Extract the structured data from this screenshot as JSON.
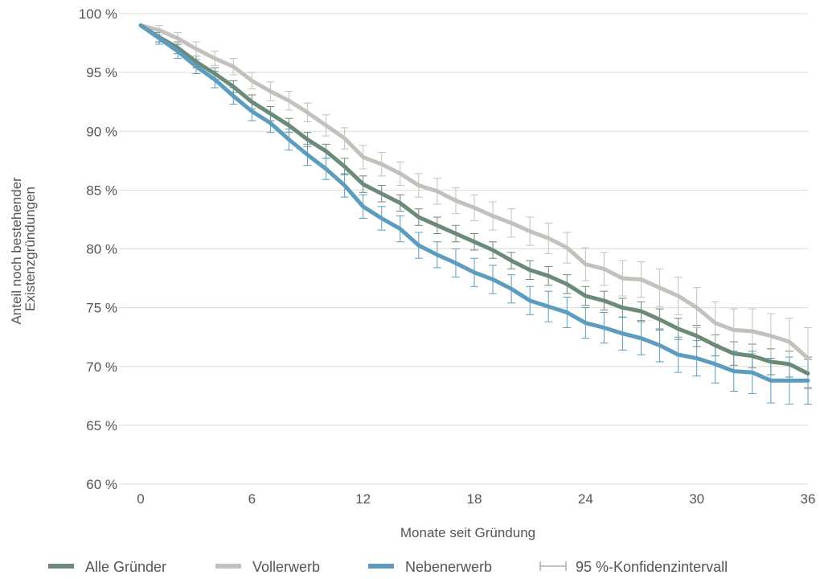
{
  "chart_data": {
    "type": "line",
    "title": "",
    "xlabel": "Monate seit Gründung",
    "ylabel_lines": [
      "Anteil noch bestehender",
      "Existenzgründungen"
    ],
    "xlim": [
      0,
      36
    ],
    "ylim": [
      60,
      100
    ],
    "x_ticks": [
      0,
      6,
      12,
      18,
      24,
      30,
      36
    ],
    "y_ticks": [
      60,
      65,
      70,
      75,
      80,
      85,
      90,
      95,
      100
    ],
    "y_tick_labels": [
      "60 %",
      "65 %",
      "70 %",
      "75 %",
      "80 %",
      "85 %",
      "90 %",
      "95 %",
      "100 %"
    ],
    "grid": "horizontal",
    "legend_position": "bottom",
    "x": [
      0,
      1,
      2,
      3,
      4,
      5,
      6,
      7,
      8,
      9,
      10,
      11,
      12,
      13,
      14,
      15,
      16,
      17,
      18,
      19,
      20,
      21,
      22,
      23,
      24,
      25,
      26,
      27,
      28,
      29,
      30,
      31,
      32,
      33,
      34,
      35,
      36
    ],
    "series": [
      {
        "name": "Alle Gründer",
        "color": "#6b8a78",
        "values": [
          99.0,
          98.0,
          97.1,
          95.9,
          94.9,
          93.8,
          92.5,
          91.5,
          90.5,
          89.3,
          88.3,
          87.0,
          85.5,
          84.7,
          83.9,
          82.7,
          82.0,
          81.3,
          80.6,
          79.9,
          79.0,
          78.2,
          77.7,
          77.0,
          76.0,
          75.6,
          75.0,
          74.7,
          74.0,
          73.2,
          72.6,
          71.8,
          71.1,
          70.9,
          70.4,
          70.2,
          69.4
        ],
        "ci_half": [
          0.4,
          0.4,
          0.5,
          0.5,
          0.5,
          0.5,
          0.6,
          0.6,
          0.6,
          0.6,
          0.6,
          0.7,
          0.7,
          0.7,
          0.7,
          0.7,
          0.7,
          0.7,
          0.7,
          0.7,
          0.7,
          0.8,
          0.8,
          0.8,
          0.8,
          0.8,
          0.8,
          0.8,
          0.9,
          0.9,
          0.9,
          0.9,
          1.0,
          1.0,
          1.1,
          1.1,
          1.2
        ]
      },
      {
        "name": "Vollerwerb",
        "color": "#c4c0bc",
        "values": [
          99.0,
          98.6,
          97.9,
          97.0,
          96.2,
          95.5,
          94.3,
          93.4,
          92.6,
          91.6,
          90.5,
          89.4,
          87.8,
          87.2,
          86.4,
          85.4,
          84.9,
          84.1,
          83.5,
          82.8,
          82.2,
          81.5,
          80.9,
          80.1,
          78.7,
          78.3,
          77.5,
          77.4,
          76.7,
          76.0,
          75.0,
          73.7,
          73.1,
          73.0,
          72.6,
          72.1,
          70.7
        ],
        "ci_half": [
          0.4,
          0.4,
          0.5,
          0.6,
          0.6,
          0.7,
          0.7,
          0.8,
          0.8,
          0.8,
          0.9,
          0.9,
          1.0,
          1.0,
          1.0,
          1.0,
          1.1,
          1.1,
          1.1,
          1.2,
          1.2,
          1.2,
          1.3,
          1.3,
          1.4,
          1.4,
          1.5,
          1.5,
          1.6,
          1.6,
          1.7,
          1.8,
          1.8,
          1.9,
          1.9,
          2.0,
          2.6
        ]
      },
      {
        "name": "Nebenerwerb",
        "color": "#5b9cbf",
        "values": [
          99.0,
          97.9,
          96.8,
          95.5,
          94.4,
          93.0,
          91.7,
          90.7,
          89.3,
          88.0,
          86.8,
          85.4,
          83.6,
          82.6,
          81.7,
          80.3,
          79.5,
          78.8,
          78.0,
          77.4,
          76.6,
          75.6,
          75.1,
          74.6,
          73.7,
          73.3,
          72.8,
          72.4,
          71.8,
          71.0,
          70.7,
          70.2,
          69.6,
          69.5,
          68.8,
          68.8,
          68.8
        ],
        "ci_half": [
          0.4,
          0.5,
          0.6,
          0.6,
          0.7,
          0.7,
          0.8,
          0.8,
          0.9,
          0.9,
          0.9,
          1.0,
          1.0,
          1.0,
          1.1,
          1.1,
          1.1,
          1.2,
          1.2,
          1.2,
          1.2,
          1.2,
          1.3,
          1.3,
          1.3,
          1.3,
          1.4,
          1.4,
          1.4,
          1.5,
          1.5,
          1.6,
          1.7,
          1.8,
          1.9,
          2.0,
          2.0
        ]
      }
    ],
    "legend_ci_label": "95 %-Konfidenzintervall",
    "ci_color": "#7a8c84"
  }
}
